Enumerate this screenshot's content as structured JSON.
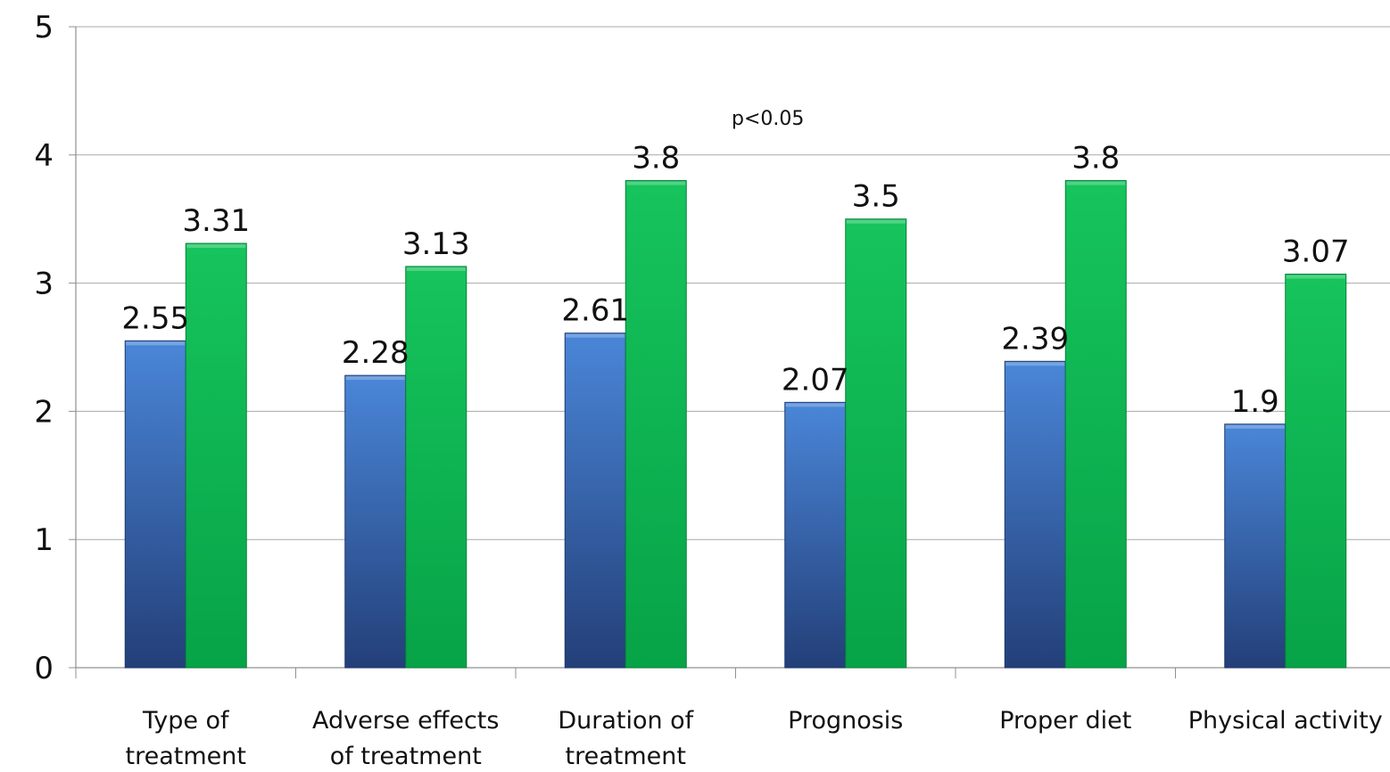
{
  "chart_data": {
    "type": "bar",
    "categories": [
      [
        "Type of",
        "treatment"
      ],
      [
        "Adverse effects",
        "of treatment"
      ],
      [
        "Duration of",
        "treatment"
      ],
      [
        "Prognosis"
      ],
      [
        "Proper diet"
      ],
      [
        "Physical activity"
      ]
    ],
    "series": [
      {
        "values": [
          2.55,
          2.28,
          2.61,
          2.07,
          2.39,
          1.9
        ],
        "labels": [
          "2.55",
          "2.28",
          "2.61",
          "2.07",
          "2.39",
          "1.9"
        ],
        "color": "#3a6fbf"
      },
      {
        "values": [
          3.31,
          3.13,
          3.8,
          3.5,
          3.8,
          3.07
        ],
        "labels": [
          "3.31",
          "3.13",
          "3.8",
          "3.5",
          "3.8",
          "3.07"
        ],
        "color": "#10b050"
      }
    ],
    "ylim": [
      0,
      5
    ],
    "yticks": [
      "0",
      "1",
      "2",
      "3",
      "4",
      "5"
    ],
    "grid": true,
    "annotation": "p<0.05",
    "xlabel": "",
    "ylabel": "",
    "title": ""
  }
}
